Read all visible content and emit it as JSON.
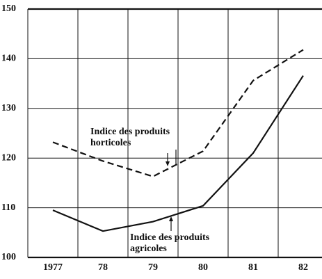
{
  "chart_data": {
    "type": "line",
    "categories": [
      "1977",
      "78",
      "79",
      "80",
      "81",
      "82"
    ],
    "series": [
      {
        "color": "#111111",
        "dash": "dashed",
        "values": [
          123.2,
          119.4,
          116.3,
          121.4,
          135.6,
          141.8
        ]
      },
      {
        "color": "#111111",
        "dash": "solid",
        "values": [
          109.5,
          105.3,
          107.2,
          110.4,
          121.0,
          136.6
        ]
      }
    ],
    "annotations": [
      {
        "lines": [
          "Indice des produits",
          "horticoles"
        ]
      },
      {
        "lines": [
          "Indice des produits",
          "agricoles"
        ]
      }
    ],
    "ylim": [
      100,
      150
    ],
    "yticks": [
      100,
      110,
      120,
      130,
      140,
      150
    ],
    "grid": true
  }
}
